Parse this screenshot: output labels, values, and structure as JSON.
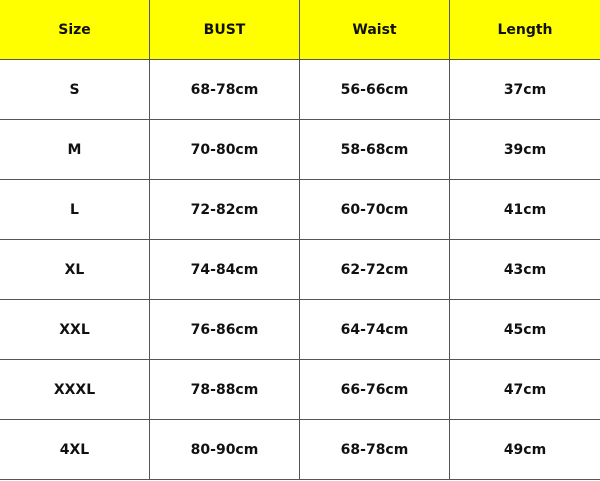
{
  "table": {
    "headers": [
      "Size",
      "BUST",
      "Waist",
      "Length"
    ],
    "rows": [
      [
        "S",
        "68-78cm",
        "56-66cm",
        "37cm"
      ],
      [
        "M",
        "70-80cm",
        "58-68cm",
        "39cm"
      ],
      [
        "L",
        "72-82cm",
        "60-70cm",
        "41cm"
      ],
      [
        "XL",
        "74-84cm",
        "62-72cm",
        "43cm"
      ],
      [
        "XXL",
        "76-86cm",
        "64-74cm",
        "45cm"
      ],
      [
        "XXXL",
        "78-88cm",
        "66-76cm",
        "47cm"
      ],
      [
        "4XL",
        "80-90cm",
        "68-78cm",
        "49cm"
      ]
    ]
  }
}
